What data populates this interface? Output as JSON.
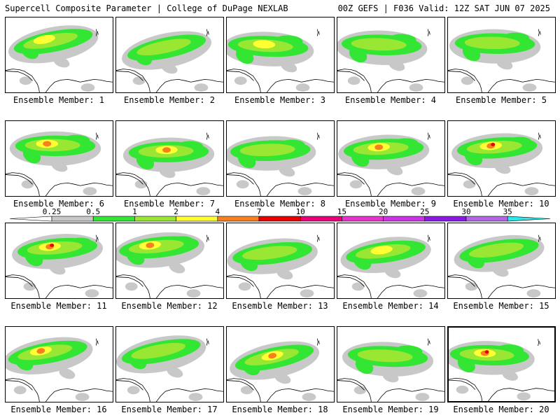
{
  "header": {
    "title_left": "Supercell Composite Parameter | College of DuPage NEXLAB",
    "title_right": "00Z GEFS | F036 Valid: 12Z SAT JUN 07 2025"
  },
  "member_label_prefix": "Ensemble Member: ",
  "members": [
    {
      "id": "1",
      "intensity": 3
    },
    {
      "id": "2",
      "intensity": 2
    },
    {
      "id": "3",
      "intensity": 3
    },
    {
      "id": "4",
      "intensity": 2
    },
    {
      "id": "5",
      "intensity": 2
    },
    {
      "id": "6",
      "intensity": 4
    },
    {
      "id": "7",
      "intensity": 4
    },
    {
      "id": "8",
      "intensity": 2
    },
    {
      "id": "9",
      "intensity": 4
    },
    {
      "id": "10",
      "intensity": 5
    },
    {
      "id": "11",
      "intensity": 5
    },
    {
      "id": "12",
      "intensity": 4
    },
    {
      "id": "13",
      "intensity": 2
    },
    {
      "id": "14",
      "intensity": 3
    },
    {
      "id": "15",
      "intensity": 2
    },
    {
      "id": "16",
      "intensity": 4
    },
    {
      "id": "17",
      "intensity": 2
    },
    {
      "id": "18",
      "intensity": 4
    },
    {
      "id": "19",
      "intensity": 2
    },
    {
      "id": "20",
      "intensity": 5,
      "selected": true
    }
  ],
  "colorbar": {
    "labels": [
      "0.25",
      "0.5",
      "1",
      "2",
      "4",
      "7",
      "10",
      "15",
      "20",
      "25",
      "30",
      "35"
    ],
    "colors": [
      "#c8c8c8",
      "#33e633",
      "#99e633",
      "#ffff33",
      "#f77f1f",
      "#e60000",
      "#e6007a",
      "#e633cc",
      "#cc33e6",
      "#8a19e6",
      "#b266e6",
      "#33e6e6"
    ]
  },
  "legend_colors": {
    "map_line": "#000000",
    "gray": "#c8c8c8",
    "green": "#33e633",
    "lightgreen": "#99e633",
    "yellow": "#ffff33",
    "orange": "#f77f1f",
    "red": "#e60000"
  }
}
